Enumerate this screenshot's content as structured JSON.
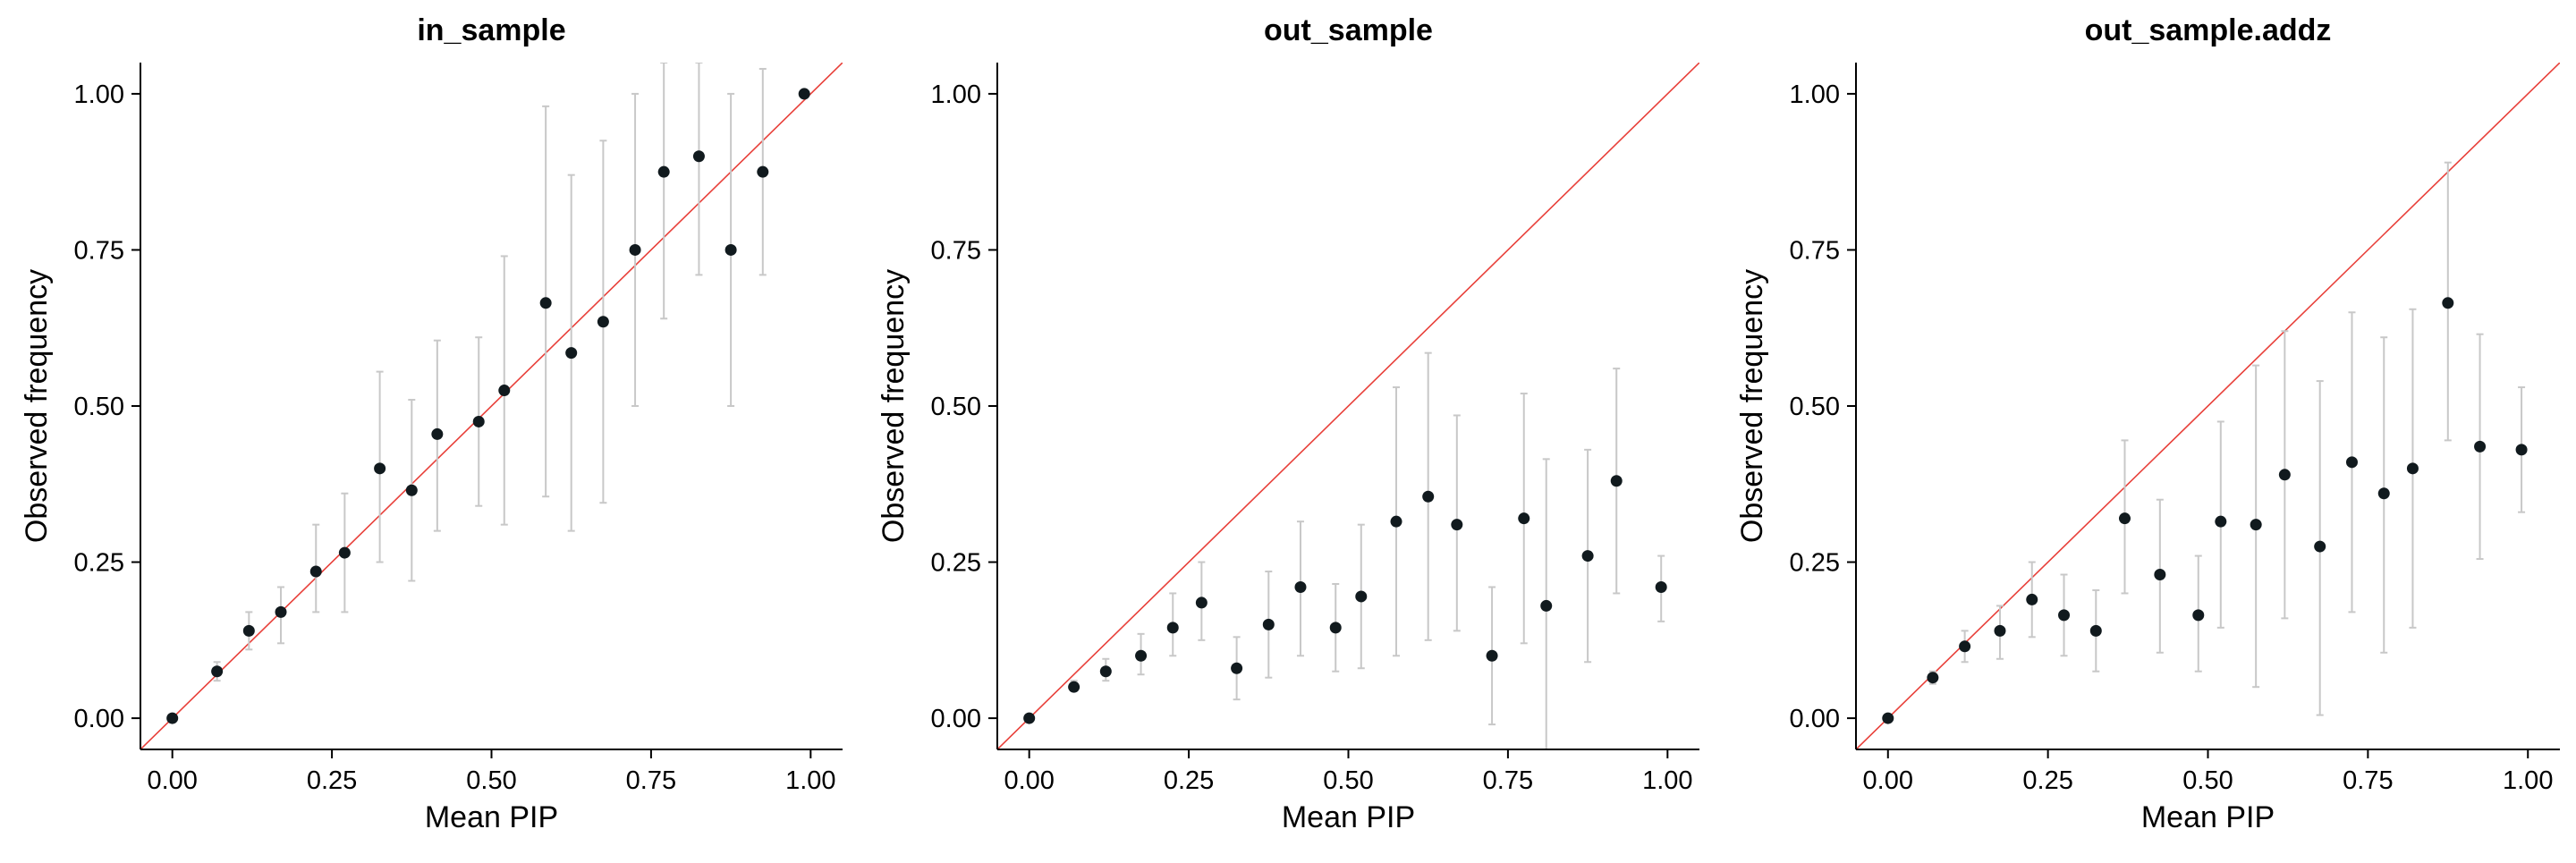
{
  "chart_data": [
    {
      "type": "scatter",
      "title": "in_sample",
      "xlabel": "Mean PIP",
      "ylabel": "Observed frequency",
      "xlim": [
        -0.05,
        1.05
      ],
      "ylim": [
        -0.05,
        1.05
      ],
      "xticks": [
        "0.00",
        "0.25",
        "0.50",
        "0.75",
        "1.00"
      ],
      "yticks": [
        "0.00",
        "0.25",
        "0.50",
        "0.75",
        "1.00"
      ],
      "grid": false,
      "reference_line": {
        "slope": 1,
        "intercept": 0,
        "color": "#e8403a"
      },
      "point_color": "#111a1e",
      "errorbar_color": "#c8c8c8",
      "points": [
        {
          "x": 0.0,
          "y": 0.0,
          "ylo": 0.0,
          "yhi": 0.0
        },
        {
          "x": 0.07,
          "y": 0.075,
          "ylo": 0.06,
          "yhi": 0.09
        },
        {
          "x": 0.12,
          "y": 0.14,
          "ylo": 0.11,
          "yhi": 0.17
        },
        {
          "x": 0.17,
          "y": 0.17,
          "ylo": 0.12,
          "yhi": 0.21
        },
        {
          "x": 0.225,
          "y": 0.235,
          "ylo": 0.17,
          "yhi": 0.31
        },
        {
          "x": 0.27,
          "y": 0.265,
          "ylo": 0.17,
          "yhi": 0.36
        },
        {
          "x": 0.325,
          "y": 0.4,
          "ylo": 0.25,
          "yhi": 0.555
        },
        {
          "x": 0.375,
          "y": 0.365,
          "ylo": 0.22,
          "yhi": 0.51
        },
        {
          "x": 0.415,
          "y": 0.455,
          "ylo": 0.3,
          "yhi": 0.605
        },
        {
          "x": 0.48,
          "y": 0.475,
          "ylo": 0.34,
          "yhi": 0.61
        },
        {
          "x": 0.52,
          "y": 0.525,
          "ylo": 0.31,
          "yhi": 0.74
        },
        {
          "x": 0.585,
          "y": 0.665,
          "ylo": 0.355,
          "yhi": 0.98
        },
        {
          "x": 0.625,
          "y": 0.585,
          "ylo": 0.3,
          "yhi": 0.87
        },
        {
          "x": 0.675,
          "y": 0.635,
          "ylo": 0.345,
          "yhi": 0.925
        },
        {
          "x": 0.725,
          "y": 0.75,
          "ylo": 0.5,
          "yhi": 1.0
        },
        {
          "x": 0.77,
          "y": 0.875,
          "ylo": 0.64,
          "yhi": 1.05
        },
        {
          "x": 0.825,
          "y": 0.9,
          "ylo": 0.71,
          "yhi": 1.05
        },
        {
          "x": 0.875,
          "y": 0.75,
          "ylo": 0.5,
          "yhi": 1.0
        },
        {
          "x": 0.925,
          "y": 0.875,
          "ylo": 0.71,
          "yhi": 1.04
        },
        {
          "x": 0.99,
          "y": 1.0,
          "ylo": 1.0,
          "yhi": 1.0
        }
      ]
    },
    {
      "type": "scatter",
      "title": "out_sample",
      "xlabel": "Mean PIP",
      "ylabel": "Observed frequency",
      "xlim": [
        -0.05,
        1.05
      ],
      "ylim": [
        -0.05,
        1.05
      ],
      "xticks": [
        "0.00",
        "0.25",
        "0.50",
        "0.75",
        "1.00"
      ],
      "yticks": [
        "0.00",
        "0.25",
        "0.50",
        "0.75",
        "1.00"
      ],
      "grid": false,
      "reference_line": {
        "slope": 1,
        "intercept": 0,
        "color": "#e8403a"
      },
      "point_color": "#111a1e",
      "errorbar_color": "#c8c8c8",
      "points": [
        {
          "x": 0.0,
          "y": 0.0,
          "ylo": 0.0,
          "yhi": 0.0
        },
        {
          "x": 0.07,
          "y": 0.05,
          "ylo": 0.045,
          "yhi": 0.06
        },
        {
          "x": 0.12,
          "y": 0.075,
          "ylo": 0.06,
          "yhi": 0.095
        },
        {
          "x": 0.175,
          "y": 0.1,
          "ylo": 0.07,
          "yhi": 0.135
        },
        {
          "x": 0.225,
          "y": 0.145,
          "ylo": 0.1,
          "yhi": 0.2
        },
        {
          "x": 0.27,
          "y": 0.185,
          "ylo": 0.125,
          "yhi": 0.25
        },
        {
          "x": 0.325,
          "y": 0.08,
          "ylo": 0.03,
          "yhi": 0.13
        },
        {
          "x": 0.375,
          "y": 0.15,
          "ylo": 0.065,
          "yhi": 0.235
        },
        {
          "x": 0.425,
          "y": 0.21,
          "ylo": 0.1,
          "yhi": 0.315
        },
        {
          "x": 0.48,
          "y": 0.145,
          "ylo": 0.075,
          "yhi": 0.215
        },
        {
          "x": 0.52,
          "y": 0.195,
          "ylo": 0.08,
          "yhi": 0.31
        },
        {
          "x": 0.575,
          "y": 0.315,
          "ylo": 0.1,
          "yhi": 0.53
        },
        {
          "x": 0.625,
          "y": 0.355,
          "ylo": 0.125,
          "yhi": 0.585
        },
        {
          "x": 0.67,
          "y": 0.31,
          "ylo": 0.14,
          "yhi": 0.485
        },
        {
          "x": 0.725,
          "y": 0.1,
          "ylo": -0.01,
          "yhi": 0.21
        },
        {
          "x": 0.775,
          "y": 0.32,
          "ylo": 0.12,
          "yhi": 0.52
        },
        {
          "x": 0.81,
          "y": 0.18,
          "ylo": -0.05,
          "yhi": 0.415
        },
        {
          "x": 0.875,
          "y": 0.26,
          "ylo": 0.09,
          "yhi": 0.43
        },
        {
          "x": 0.92,
          "y": 0.38,
          "ylo": 0.2,
          "yhi": 0.56
        },
        {
          "x": 0.99,
          "y": 0.21,
          "ylo": 0.155,
          "yhi": 0.26
        }
      ]
    },
    {
      "type": "scatter",
      "title": "out_sample.addz",
      "xlabel": "Mean PIP",
      "ylabel": "Observed frequency",
      "xlim": [
        -0.05,
        1.05
      ],
      "ylim": [
        -0.05,
        1.05
      ],
      "xticks": [
        "0.00",
        "0.25",
        "0.50",
        "0.75",
        "1.00"
      ],
      "yticks": [
        "0.00",
        "0.25",
        "0.50",
        "0.75",
        "1.00"
      ],
      "grid": false,
      "reference_line": {
        "slope": 1,
        "intercept": 0,
        "color": "#e8403a"
      },
      "point_color": "#111a1e",
      "errorbar_color": "#c8c8c8",
      "points": [
        {
          "x": 0.0,
          "y": 0.0,
          "ylo": 0.0,
          "yhi": 0.0
        },
        {
          "x": 0.07,
          "y": 0.065,
          "ylo": 0.055,
          "yhi": 0.075
        },
        {
          "x": 0.12,
          "y": 0.115,
          "ylo": 0.09,
          "yhi": 0.14
        },
        {
          "x": 0.175,
          "y": 0.14,
          "ylo": 0.095,
          "yhi": 0.18
        },
        {
          "x": 0.225,
          "y": 0.19,
          "ylo": 0.13,
          "yhi": 0.25
        },
        {
          "x": 0.275,
          "y": 0.165,
          "ylo": 0.1,
          "yhi": 0.23
        },
        {
          "x": 0.325,
          "y": 0.14,
          "ylo": 0.075,
          "yhi": 0.205
        },
        {
          "x": 0.37,
          "y": 0.32,
          "ylo": 0.2,
          "yhi": 0.445
        },
        {
          "x": 0.425,
          "y": 0.23,
          "ylo": 0.105,
          "yhi": 0.35
        },
        {
          "x": 0.485,
          "y": 0.165,
          "ylo": 0.075,
          "yhi": 0.26
        },
        {
          "x": 0.52,
          "y": 0.315,
          "ylo": 0.145,
          "yhi": 0.475
        },
        {
          "x": 0.575,
          "y": 0.31,
          "ylo": 0.05,
          "yhi": 0.565
        },
        {
          "x": 0.62,
          "y": 0.39,
          "ylo": 0.16,
          "yhi": 0.62
        },
        {
          "x": 0.675,
          "y": 0.275,
          "ylo": 0.005,
          "yhi": 0.54
        },
        {
          "x": 0.725,
          "y": 0.41,
          "ylo": 0.17,
          "yhi": 0.65
        },
        {
          "x": 0.775,
          "y": 0.36,
          "ylo": 0.105,
          "yhi": 0.61
        },
        {
          "x": 0.82,
          "y": 0.4,
          "ylo": 0.145,
          "yhi": 0.655
        },
        {
          "x": 0.875,
          "y": 0.665,
          "ylo": 0.445,
          "yhi": 0.89
        },
        {
          "x": 0.925,
          "y": 0.435,
          "ylo": 0.255,
          "yhi": 0.615
        },
        {
          "x": 0.99,
          "y": 0.43,
          "ylo": 0.33,
          "yhi": 0.53
        }
      ]
    }
  ]
}
